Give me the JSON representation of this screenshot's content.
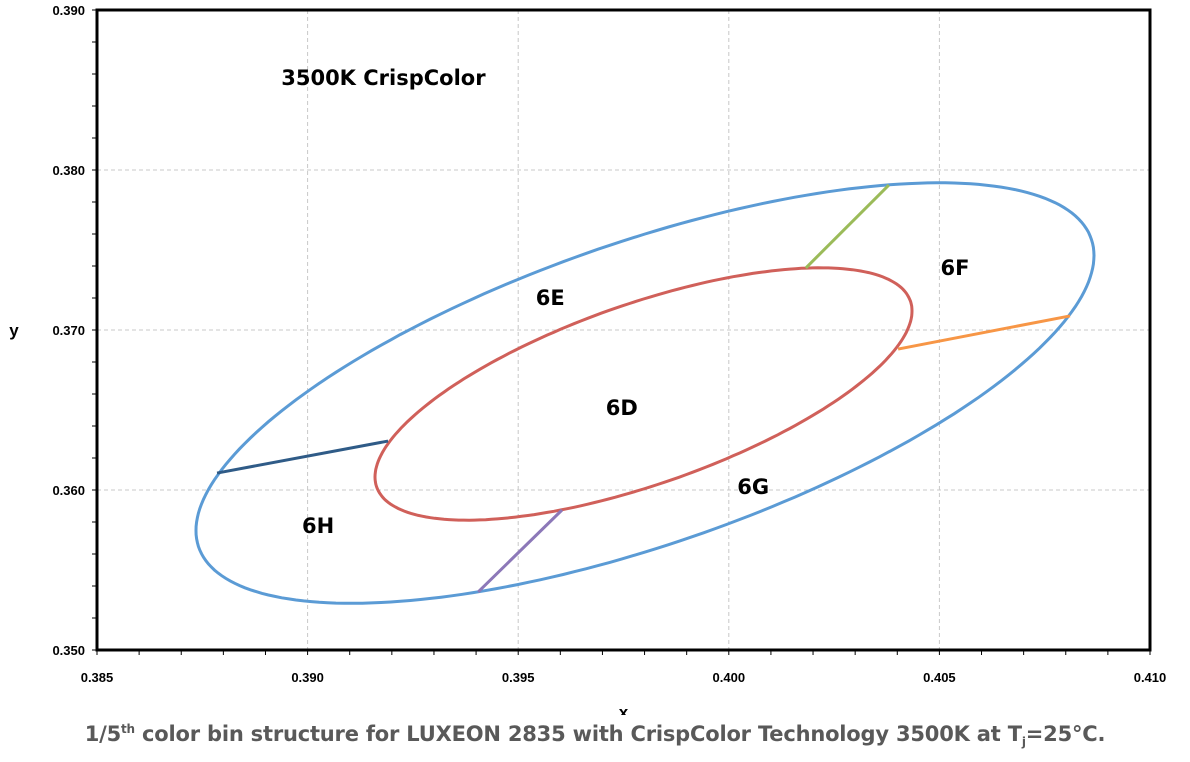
{
  "chart_data": {
    "type": "line",
    "title": "3500K CrispColor",
    "xlabel": "x",
    "ylabel": "y",
    "xlim": [
      0.385,
      0.41
    ],
    "ylim": [
      0.35,
      0.39
    ],
    "grid": true,
    "xticks": [
      "0.385",
      "0.390",
      "0.395",
      "0.400",
      "0.405",
      "0.410"
    ],
    "yticks": [
      "0.350",
      "0.360",
      "0.370",
      "0.380",
      "0.390"
    ],
    "title_position": {
      "x": 0.3918,
      "y": 0.3858
    },
    "ellipses": [
      {
        "name": "outer-bin-ellipse",
        "color": "#5b9bd5",
        "center": [
          0.39801,
          0.36606
        ],
        "u": [
          0.01066,
          0.008594
        ],
        "v": [
          0,
          0.00994
        ]
      },
      {
        "name": "inner-bin-6D-ellipse",
        "color": "#d0605a",
        "center": [
          0.397975,
          0.366
        ],
        "u": [
          0.006375,
          0.005188
        ],
        "v": [
          0,
          0.005938
        ]
      }
    ],
    "dividers": [
      {
        "name": "divider-6E-6H",
        "color": "#2f5b87",
        "x": [
          0.38785,
          0.39191
        ],
        "y": [
          0.36106,
          0.36306
        ]
      },
      {
        "name": "divider-6H-6G",
        "color": "#8c78b8",
        "x": [
          0.39405,
          0.39604
        ],
        "y": [
          0.35363,
          0.35875
        ]
      },
      {
        "name": "divider-6E-6F",
        "color": "#9bbb59",
        "x": [
          0.40183,
          0.4038
        ],
        "y": [
          0.37388,
          0.37906
        ]
      },
      {
        "name": "divider-6F-6G",
        "color": "#f79646",
        "x": [
          0.40402,
          0.4081
        ],
        "y": [
          0.36881,
          0.37088
        ]
      }
    ],
    "bin_labels": [
      {
        "text": "6E",
        "x": 0.39576,
        "y": 0.37206
      },
      {
        "text": "6D",
        "x": 0.39746,
        "y": 0.36519
      },
      {
        "text": "6F",
        "x": 0.40537,
        "y": 0.37394
      },
      {
        "text": "6G",
        "x": 0.40058,
        "y": 0.36025
      },
      {
        "text": "6H",
        "x": 0.39025,
        "y": 0.35781
      }
    ]
  },
  "caption": {
    "prefix": "1/5",
    "sup": "th",
    "main": " color bin structure for LUXEON 2835 with CrispColor Technology 3500K at T",
    "sub": "j",
    "suffix": "=25°C."
  }
}
